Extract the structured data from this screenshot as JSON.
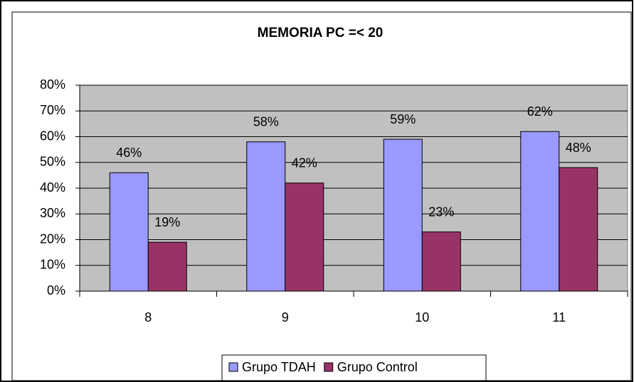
{
  "chart_data": {
    "type": "bar",
    "title": "MEMORIA PC =< 20",
    "categories": [
      "8",
      "9",
      "10",
      "11"
    ],
    "series": [
      {
        "name": "Grupo TDAH",
        "color": "#9999ff",
        "values": [
          46,
          58,
          59,
          62
        ],
        "value_labels": [
          "46%",
          "58%",
          "59%",
          "62%"
        ]
      },
      {
        "name": "Grupo Control",
        "color": "#993366",
        "values": [
          19,
          42,
          23,
          48
        ],
        "value_labels": [
          "19%",
          "42%",
          "23%",
          "48%"
        ]
      }
    ],
    "ylim": [
      0,
      80
    ],
    "yticks": [
      {
        "value": 0,
        "label": "0%"
      },
      {
        "value": 10,
        "label": "10%"
      },
      {
        "value": 20,
        "label": "20%"
      },
      {
        "value": 30,
        "label": "30%"
      },
      {
        "value": 40,
        "label": "40%"
      },
      {
        "value": 50,
        "label": "50%"
      },
      {
        "value": 60,
        "label": "60%"
      },
      {
        "value": 70,
        "label": "70%"
      },
      {
        "value": 80,
        "label": "80%"
      }
    ],
    "grid": true,
    "legend": "bottom",
    "plot_background": "#c0c0c0"
  }
}
